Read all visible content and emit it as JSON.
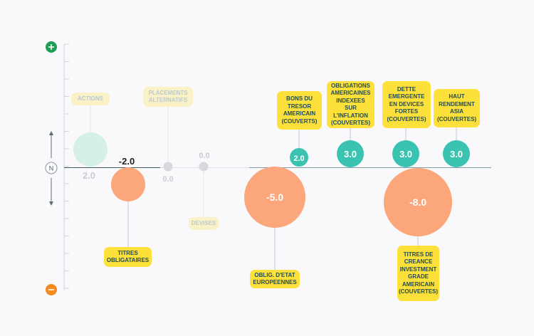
{
  "chart_data": {
    "type": "bubble",
    "title": "",
    "scale": {
      "top_marker": "+",
      "neutral_marker": "N",
      "bottom_marker": "−"
    },
    "items": [
      {
        "label": "ACTIONS",
        "value": 2.0,
        "value_text": "2.0",
        "faded": true,
        "color": "#d5efe9",
        "value_color": "#c6cdd0"
      },
      {
        "label": "TITRES OBLIGATAIRES",
        "value": -2.0,
        "value_text": "-2.0",
        "faded": false,
        "color": "#fca67c",
        "value_color": "#222222"
      },
      {
        "label": "PLACEMENTS ALTERNATIFS",
        "value": 0.0,
        "value_text": "0.0",
        "faded": true,
        "color": "#d7d8dc",
        "value_color": "#c6cdd0"
      },
      {
        "label": "DEVISES",
        "value": 0.0,
        "value_text": "0.0",
        "faded": true,
        "color": "#d7d8dc",
        "value_color": "#c6cdd0"
      },
      {
        "label": "OBLIG. D'ETAT EUROPEENNES",
        "value": -5.0,
        "value_text": "-5.0",
        "faded": false,
        "color": "#fca67c",
        "value_color": "#ffffff"
      },
      {
        "label": "BONS DU TRESOR AMERICAIN (COUVERTS)",
        "value": 2.0,
        "value_text": "2.0",
        "faded": false,
        "color": "#39c3b0",
        "value_color": "#ffffff"
      },
      {
        "label": "OBLIGATIONS AMERICAINES INDEXEES SUR L'INFLATION (COUVERTES)",
        "value": 3.0,
        "value_text": "3.0",
        "faded": false,
        "color": "#39c3b0",
        "value_color": "#ffffff"
      },
      {
        "label": "TITRES DE CREANCE INVESTMENT GRADE AMERICAIN (COUVERTES)",
        "value": -8.0,
        "value_text": "-8.0",
        "faded": false,
        "color": "#fca67c",
        "value_color": "#ffffff"
      },
      {
        "label": "DETTE EMERGENTE EN DEVICES FORTES (COUVERTES)",
        "value": 3.0,
        "value_text": "3.0",
        "faded": false,
        "color": "#39c3b0",
        "value_color": "#ffffff"
      },
      {
        "label": "HAUT RENDEMENT ASIA (COUVERTES)",
        "value": 3.0,
        "value_text": "3.0",
        "faded": false,
        "color": "#39c3b0",
        "value_color": "#ffffff"
      }
    ]
  }
}
